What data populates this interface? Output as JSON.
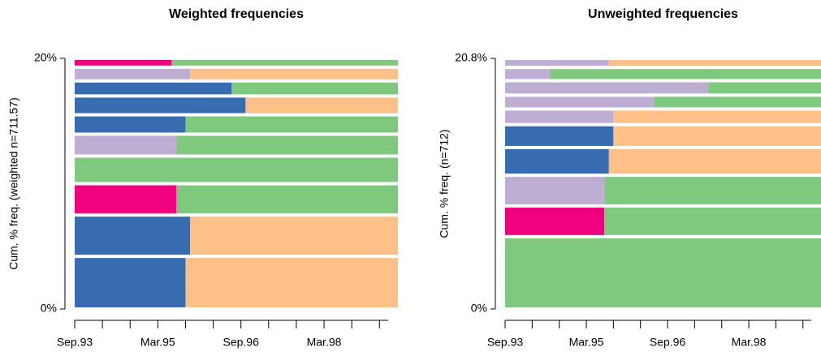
{
  "chart_data": [
    {
      "type": "sequence-index",
      "title": "Weighted frequencies",
      "y_label": "Cum. % freq. (weighted n=711.57)",
      "xlim": [
        0,
        70
      ],
      "xticks": [
        {
          "value": 0,
          "label": "Sep.93"
        },
        {
          "value": 18,
          "label": "Mar.95"
        },
        {
          "value": 36,
          "label": "Sep.96"
        },
        {
          "value": 54,
          "label": "Mar.98"
        }
      ],
      "minor_xticks": [
        6,
        12,
        24,
        30,
        42,
        48,
        60,
        66
      ],
      "ylim": [
        0,
        20
      ],
      "yticks": [
        {
          "value": 0,
          "label": "0%"
        },
        {
          "value": 20,
          "label": "20%"
        }
      ],
      "rows": [
        {
          "freq": 4.2,
          "segments": [
            {
              "start": 0,
              "end": 24,
              "color": "#386cb0"
            },
            {
              "start": 24,
              "end": 70,
              "color": "#fdc086"
            }
          ]
        },
        {
          "freq": 3.3,
          "segments": [
            {
              "start": 0,
              "end": 25,
              "color": "#386cb0"
            },
            {
              "start": 25,
              "end": 70,
              "color": "#fdc086"
            }
          ]
        },
        {
          "freq": 2.5,
          "segments": [
            {
              "start": 0,
              "end": 22,
              "color": "#f0027f"
            },
            {
              "start": 22,
              "end": 70,
              "color": "#7fc97f"
            }
          ]
        },
        {
          "freq": 2.2,
          "segments": [
            {
              "start": 0,
              "end": 70,
              "color": "#7fc97f"
            }
          ]
        },
        {
          "freq": 1.75,
          "segments": [
            {
              "start": 0,
              "end": 22,
              "color": "#beaed4"
            },
            {
              "start": 22,
              "end": 70,
              "color": "#7fc97f"
            }
          ]
        },
        {
          "freq": 1.55,
          "segments": [
            {
              "start": 0,
              "end": 24,
              "color": "#386cb0"
            },
            {
              "start": 24,
              "end": 70,
              "color": "#7fc97f"
            }
          ]
        },
        {
          "freq": 1.5,
          "segments": [
            {
              "start": 0,
              "end": 37,
              "color": "#386cb0"
            },
            {
              "start": 37,
              "end": 70,
              "color": "#fdc086"
            }
          ]
        },
        {
          "freq": 1.2,
          "segments": [
            {
              "start": 0,
              "end": 34,
              "color": "#386cb0"
            },
            {
              "start": 34,
              "end": 70,
              "color": "#7fc97f"
            }
          ]
        },
        {
          "freq": 1.1,
          "segments": [
            {
              "start": 0,
              "end": 25,
              "color": "#beaed4"
            },
            {
              "start": 25,
              "end": 70,
              "color": "#fdc086"
            }
          ]
        },
        {
          "freq": 0.7,
          "segments": [
            {
              "start": 0,
              "end": 21,
              "color": "#f0027f"
            },
            {
              "start": 21,
              "end": 70,
              "color": "#7fc97f"
            }
          ]
        }
      ]
    },
    {
      "type": "sequence-index",
      "title": "Unweighted frequencies",
      "y_label": "Cum. % freq. (n=712)",
      "xlim": [
        0,
        70
      ],
      "xticks": [
        {
          "value": 0,
          "label": "Sep.93"
        },
        {
          "value": 18,
          "label": "Mar.95"
        },
        {
          "value": 36,
          "label": "Sep.96"
        },
        {
          "value": 54,
          "label": "Mar.98"
        }
      ],
      "minor_xticks": [
        6,
        12,
        24,
        30,
        42,
        48,
        60,
        66
      ],
      "ylim": [
        0,
        20.8
      ],
      "yticks": [
        {
          "value": 0,
          "label": "0%"
        },
        {
          "value": 20.8,
          "label": "20.8%"
        }
      ],
      "rows": [
        {
          "freq": 6.0,
          "segments": [
            {
              "start": 0,
              "end": 70,
              "color": "#7fc97f"
            }
          ]
        },
        {
          "freq": 2.55,
          "segments": [
            {
              "start": 0,
              "end": 22,
              "color": "#f0027f"
            },
            {
              "start": 22,
              "end": 70,
              "color": "#7fc97f"
            }
          ]
        },
        {
          "freq": 2.55,
          "segments": [
            {
              "start": 0,
              "end": 22,
              "color": "#beaed4"
            },
            {
              "start": 22,
              "end": 70,
              "color": "#7fc97f"
            }
          ]
        },
        {
          "freq": 2.3,
          "segments": [
            {
              "start": 0,
              "end": 23,
              "color": "#386cb0"
            },
            {
              "start": 23,
              "end": 70,
              "color": "#fdc086"
            }
          ]
        },
        {
          "freq": 1.9,
          "segments": [
            {
              "start": 0,
              "end": 24,
              "color": "#386cb0"
            },
            {
              "start": 24,
              "end": 70,
              "color": "#fdc086"
            }
          ]
        },
        {
          "freq": 1.3,
          "segments": [
            {
              "start": 0,
              "end": 24,
              "color": "#beaed4"
            },
            {
              "start": 24,
              "end": 70,
              "color": "#fdc086"
            }
          ]
        },
        {
          "freq": 1.15,
          "segments": [
            {
              "start": 0,
              "end": 33,
              "color": "#beaed4"
            },
            {
              "start": 33,
              "end": 70,
              "color": "#7fc97f"
            }
          ]
        },
        {
          "freq": 1.2,
          "segments": [
            {
              "start": 0,
              "end": 45,
              "color": "#beaed4"
            },
            {
              "start": 45,
              "end": 70,
              "color": "#7fc97f"
            }
          ]
        },
        {
          "freq": 1.1,
          "segments": [
            {
              "start": 0,
              "end": 10,
              "color": "#beaed4"
            },
            {
              "start": 10,
              "end": 70,
              "color": "#7fc97f"
            }
          ]
        },
        {
          "freq": 0.75,
          "segments": [
            {
              "start": 0,
              "end": 23,
              "color": "#beaed4"
            },
            {
              "start": 23,
              "end": 70,
              "color": "#fdc086"
            }
          ]
        }
      ]
    }
  ]
}
